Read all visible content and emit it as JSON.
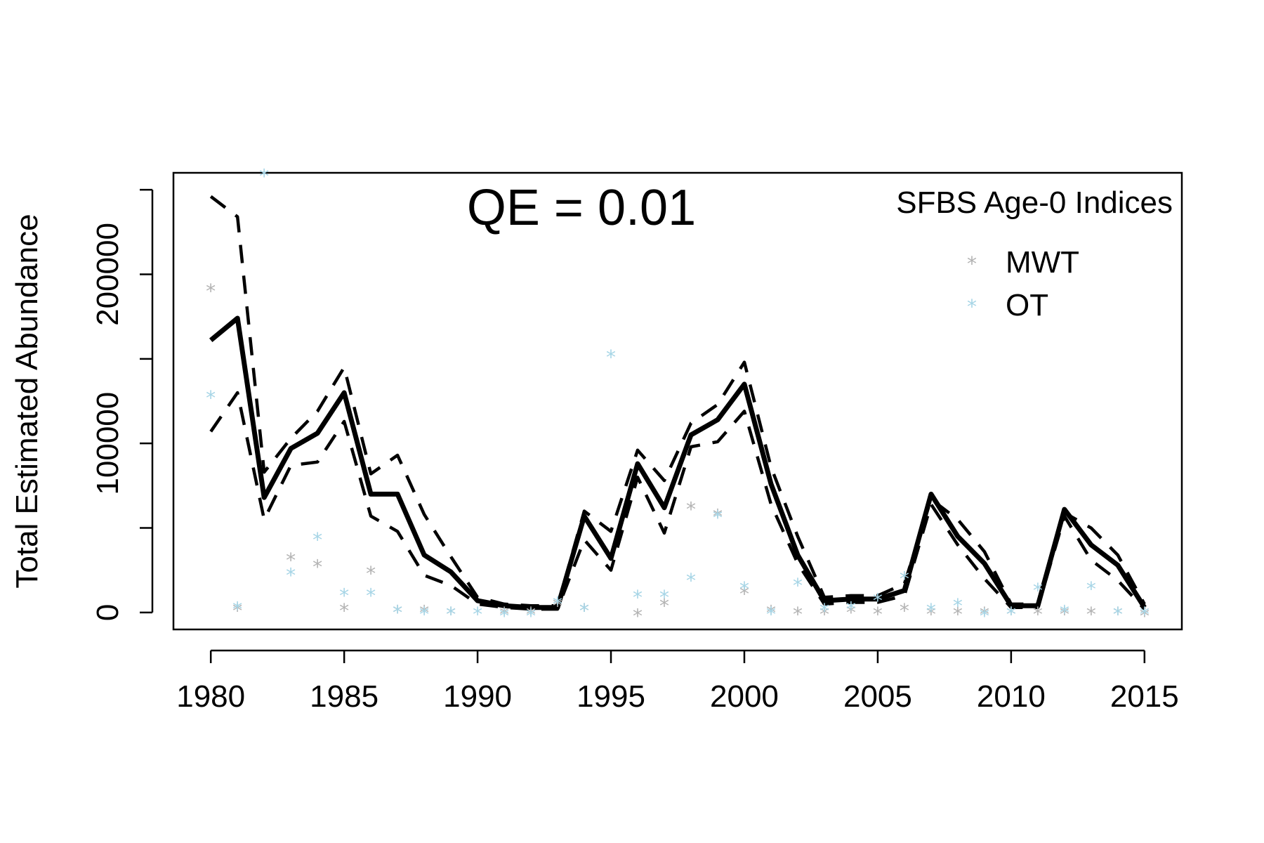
{
  "chart_data": {
    "type": "line",
    "title": "QE = 0.01",
    "xlabel": "",
    "ylabel": "Total Estimated Abundance",
    "xlim": [
      1978.6,
      2016.4
    ],
    "ylim": [
      -10000,
      260000
    ],
    "x_ticks": [
      1980,
      1985,
      1990,
      1995,
      2000,
      2005,
      2010,
      2015
    ],
    "y_ticks": [
      0,
      50000,
      100000,
      150000,
      200000,
      250000
    ],
    "y_tick_labels": [
      "0",
      "",
      "100000",
      "",
      "200000",
      ""
    ],
    "grid": false,
    "legend": {
      "title": "SFBS Age-0 Indices",
      "position": "top-right",
      "entries": [
        {
          "label": "MWT",
          "color": "#b3b3b3",
          "marker": "*"
        },
        {
          "label": "OT",
          "color": "#a6d5e6",
          "marker": "*"
        }
      ]
    },
    "x": [
      1980,
      1981,
      1982,
      1983,
      1984,
      1985,
      1986,
      1987,
      1988,
      1989,
      1990,
      1991,
      1992,
      1993,
      1994,
      1995,
      1996,
      1997,
      1998,
      1999,
      2000,
      2001,
      2002,
      2003,
      2004,
      2005,
      2006,
      2007,
      2008,
      2009,
      2010,
      2011,
      2012,
      2013,
      2014,
      2015
    ],
    "lines": [
      {
        "name": "estimate",
        "style": "solid",
        "color": "#000000",
        "values": [
          161000,
          174000,
          68000,
          97000,
          106000,
          130000,
          70000,
          70000,
          34000,
          24000,
          7000,
          4000,
          3000,
          3000,
          57000,
          32000,
          88000,
          62000,
          105000,
          114000,
          135000,
          76000,
          34000,
          7000,
          8000,
          8000,
          13000,
          70000,
          45000,
          29000,
          4000,
          4000,
          61000,
          40000,
          28000,
          3000
        ]
      },
      {
        "name": "upper",
        "style": "dashed",
        "color": "#000000",
        "values": [
          246000,
          234000,
          83000,
          103000,
          119000,
          145000,
          82000,
          93000,
          58000,
          33000,
          9000,
          5000,
          4000,
          4000,
          60000,
          48000,
          96000,
          78000,
          112000,
          123000,
          148000,
          86000,
          45000,
          9000,
          10000,
          10000,
          17000,
          67000,
          55000,
          36000,
          5000,
          5000,
          59000,
          50000,
          34000,
          5000
        ]
      },
      {
        "name": "lower",
        "style": "dashed",
        "color": "#000000",
        "values": [
          107000,
          130000,
          55000,
          87000,
          89000,
          113000,
          57000,
          48000,
          22000,
          16000,
          5000,
          3000,
          2000,
          2000,
          43000,
          25000,
          80000,
          47000,
          98000,
          101000,
          119000,
          64000,
          29000,
          5000,
          6000,
          6000,
          10000,
          64000,
          40000,
          20000,
          3000,
          3000,
          57000,
          31000,
          19000,
          2000
        ]
      }
    ],
    "points": [
      {
        "name": "MWT",
        "color": "#b3b3b3",
        "values": [
          191000,
          2000,
          null,
          32000,
          28000,
          2000,
          24000,
          1000,
          1000,
          0,
          null,
          0,
          0,
          5000,
          2000,
          null,
          -1000,
          5000,
          62000,
          58000,
          12000,
          1000,
          0,
          0,
          1000,
          0,
          2000,
          0,
          0,
          0,
          0,
          0,
          0,
          0,
          0,
          -1000
        ]
      },
      {
        "name": "OT",
        "color": "#a6d5e6",
        "values": [
          128000,
          3000,
          259000,
          23000,
          44000,
          11000,
          11000,
          1000,
          0,
          0,
          0,
          -1000,
          -1000,
          6000,
          2000,
          152000,
          10000,
          10000,
          20000,
          57000,
          15000,
          0,
          17000,
          2000,
          3000,
          8000,
          21000,
          2000,
          5000,
          -1000,
          0,
          14000,
          1000,
          15000,
          0,
          0
        ]
      }
    ]
  }
}
